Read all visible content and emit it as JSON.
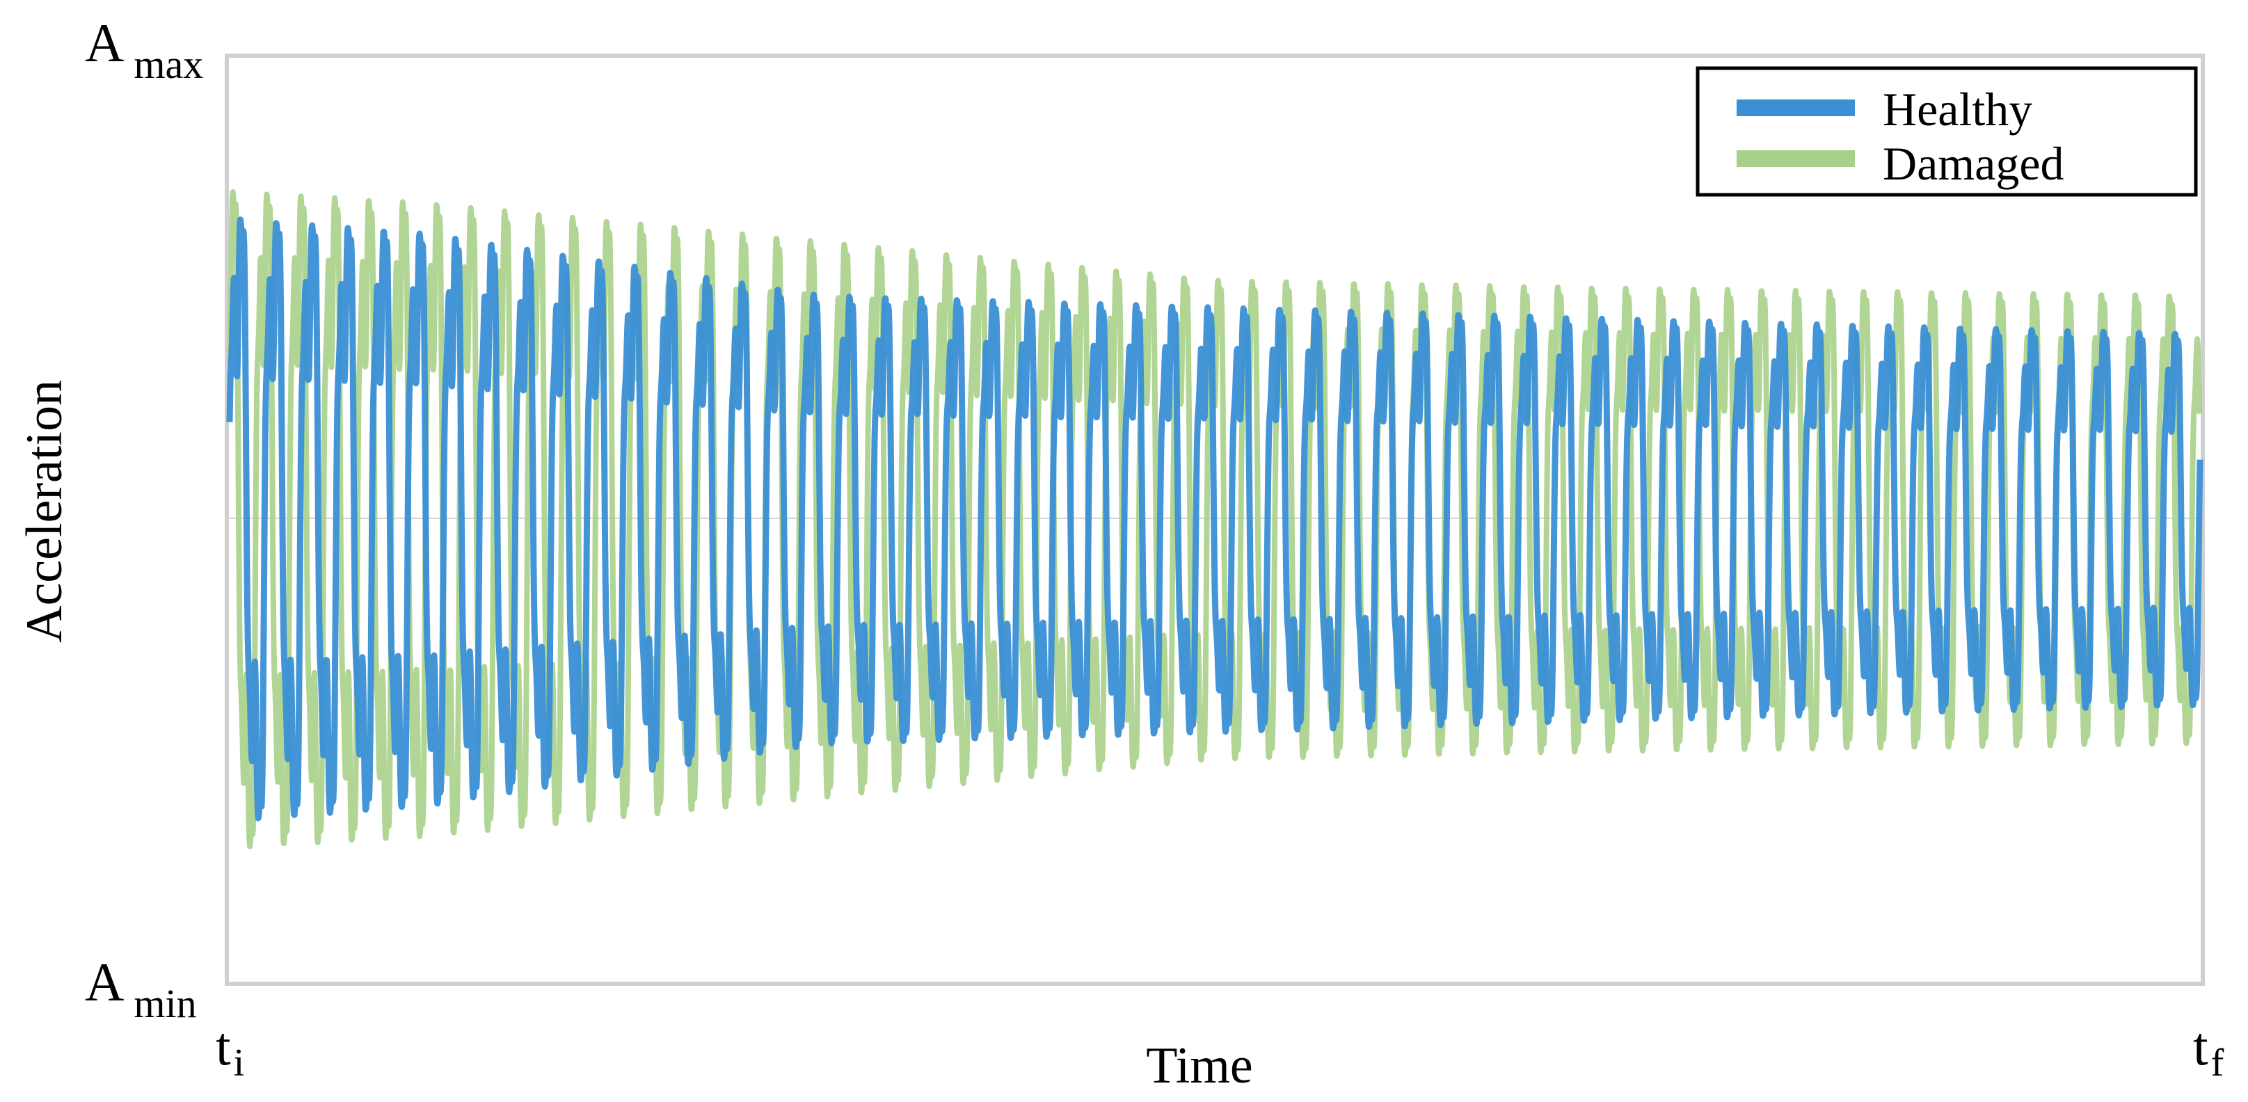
{
  "chart_data": {
    "type": "line",
    "xlabel": "Time",
    "ylabel": "Acceleration",
    "x_ticks": {
      "start": {
        "main": "t",
        "sub": "i"
      },
      "end": {
        "main": "t",
        "sub": "f"
      }
    },
    "y_ticks": {
      "max": {
        "main": "A",
        "sub": "max"
      },
      "min": {
        "main": "A",
        "sub": "min"
      }
    },
    "xlim": [
      0,
      1
    ],
    "ylim": [
      -1,
      1
    ],
    "grid": false,
    "legend": {
      "placement": "top-right"
    },
    "series": [
      {
        "name": "Healthy",
        "color": "#3a8fd5",
        "cycles": 55,
        "amplitude_envelope": [
          [
            0,
            0.78
          ],
          [
            0.1,
            0.74
          ],
          [
            0.3,
            0.58
          ],
          [
            0.5,
            0.55
          ],
          [
            0.7,
            0.52
          ],
          [
            1,
            0.48
          ]
        ],
        "baseline": 0.0
      },
      {
        "name": "Damaged",
        "color": "#a9d08a",
        "cycles": 58,
        "amplitude_envelope": [
          [
            0,
            0.85
          ],
          [
            0.1,
            0.82
          ],
          [
            0.3,
            0.72
          ],
          [
            0.5,
            0.62
          ],
          [
            0.7,
            0.6
          ],
          [
            1,
            0.58
          ]
        ],
        "baseline": 0.0
      }
    ]
  }
}
